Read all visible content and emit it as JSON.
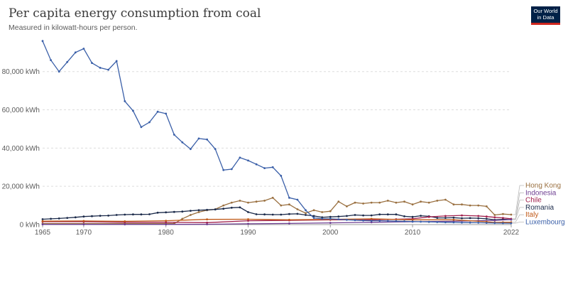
{
  "header": {
    "title": "Per capita energy consumption from coal",
    "subtitle": "Measured in kilowatt-hours per person.",
    "logo_line1": "Our World",
    "logo_line2": "in Data"
  },
  "chart_data": {
    "type": "line",
    "title": "Per capita energy consumption from coal",
    "subtitle": "Measured in kilowatt-hours per person.",
    "xlim": [
      1965,
      2022
    ],
    "ylim": [
      0,
      97000
    ],
    "x_ticks": [
      1965,
      1970,
      1980,
      1990,
      2000,
      2010,
      2022
    ],
    "y_ticks": [
      0,
      20000,
      40000,
      60000,
      80000
    ],
    "y_tick_labels": [
      "0 kWh",
      "20,000 kWh",
      "40,000 kWh",
      "60,000 kWh",
      "80,000 kWh"
    ],
    "grid": "horizontal dashed",
    "legend": "right",
    "series": [
      {
        "name": "Luxembourg",
        "color": "#3a5fa8",
        "points": [
          [
            1965,
            96000
          ],
          [
            1966,
            86000
          ],
          [
            1967,
            80000
          ],
          [
            1968,
            85000
          ],
          [
            1969,
            90000
          ],
          [
            1970,
            92000
          ],
          [
            1971,
            84500
          ],
          [
            1972,
            82000
          ],
          [
            1973,
            81000
          ],
          [
            1974,
            85500
          ],
          [
            1975,
            64500
          ],
          [
            1976,
            59500
          ],
          [
            1977,
            51000
          ],
          [
            1978,
            53500
          ],
          [
            1979,
            59000
          ],
          [
            1980,
            58000
          ],
          [
            1981,
            47000
          ],
          [
            1982,
            43000
          ],
          [
            1983,
            39500
          ],
          [
            1984,
            45000
          ],
          [
            1985,
            44500
          ],
          [
            1986,
            39500
          ],
          [
            1987,
            28500
          ],
          [
            1988,
            29000
          ],
          [
            1989,
            35000
          ],
          [
            1990,
            33500
          ],
          [
            1991,
            31500
          ],
          [
            1992,
            29500
          ],
          [
            1993,
            30000
          ],
          [
            1994,
            25500
          ],
          [
            1995,
            14000
          ],
          [
            1996,
            13000
          ],
          [
            1997,
            7500
          ],
          [
            1998,
            3500
          ],
          [
            1999,
            3000
          ],
          [
            2000,
            3000
          ],
          [
            2001,
            2800
          ],
          [
            2002,
            2500
          ],
          [
            2003,
            2300
          ],
          [
            2004,
            2100
          ],
          [
            2005,
            2000
          ],
          [
            2006,
            2000
          ],
          [
            2007,
            1900
          ],
          [
            2008,
            1800
          ],
          [
            2009,
            1700
          ],
          [
            2010,
            1600
          ],
          [
            2011,
            1500
          ],
          [
            2012,
            1400
          ],
          [
            2013,
            1300
          ],
          [
            2014,
            1200
          ],
          [
            2015,
            1100
          ],
          [
            2016,
            1000
          ],
          [
            2017,
            1000
          ],
          [
            2018,
            950
          ],
          [
            2019,
            900
          ],
          [
            2020,
            800
          ],
          [
            2021,
            750
          ],
          [
            2022,
            700
          ]
        ]
      },
      {
        "name": "Hong Kong",
        "color": "#9a7040",
        "points": [
          [
            1965,
            500
          ],
          [
            1970,
            500
          ],
          [
            1975,
            500
          ],
          [
            1980,
            500
          ],
          [
            1981,
            500
          ],
          [
            1982,
            3000
          ],
          [
            1983,
            5000
          ],
          [
            1984,
            6500
          ],
          [
            1985,
            7500
          ],
          [
            1986,
            8000
          ],
          [
            1987,
            10000
          ],
          [
            1988,
            11500
          ],
          [
            1989,
            12500
          ],
          [
            1990,
            11500
          ],
          [
            1991,
            12000
          ],
          [
            1992,
            12500
          ],
          [
            1993,
            14000
          ],
          [
            1994,
            10000
          ],
          [
            1995,
            10500
          ],
          [
            1996,
            8000
          ],
          [
            1997,
            6000
          ],
          [
            1998,
            7500
          ],
          [
            1999,
            6500
          ],
          [
            2000,
            7000
          ],
          [
            2001,
            12000
          ],
          [
            2002,
            9500
          ],
          [
            2003,
            11500
          ],
          [
            2004,
            11000
          ],
          [
            2005,
            11500
          ],
          [
            2006,
            11500
          ],
          [
            2007,
            12500
          ],
          [
            2008,
            11500
          ],
          [
            2009,
            12000
          ],
          [
            2010,
            10500
          ],
          [
            2011,
            12000
          ],
          [
            2012,
            11500
          ],
          [
            2013,
            12500
          ],
          [
            2014,
            13000
          ],
          [
            2015,
            10500
          ],
          [
            2016,
            10500
          ],
          [
            2017,
            10000
          ],
          [
            2018,
            10000
          ],
          [
            2019,
            9500
          ],
          [
            2020,
            5000
          ],
          [
            2021,
            5500
          ],
          [
            2022,
            5200
          ]
        ]
      },
      {
        "name": "Romania",
        "color": "#1b2a4a",
        "points": [
          [
            1965,
            2800
          ],
          [
            1966,
            3000
          ],
          [
            1967,
            3200
          ],
          [
            1968,
            3500
          ],
          [
            1969,
            3800
          ],
          [
            1970,
            4200
          ],
          [
            1971,
            4400
          ],
          [
            1972,
            4600
          ],
          [
            1973,
            4700
          ],
          [
            1974,
            5000
          ],
          [
            1975,
            5200
          ],
          [
            1976,
            5300
          ],
          [
            1977,
            5300
          ],
          [
            1978,
            5400
          ],
          [
            1979,
            6200
          ],
          [
            1980,
            6400
          ],
          [
            1981,
            6600
          ],
          [
            1982,
            6800
          ],
          [
            1983,
            7200
          ],
          [
            1984,
            7500
          ],
          [
            1985,
            7700
          ],
          [
            1986,
            7900
          ],
          [
            1987,
            8300
          ],
          [
            1988,
            8800
          ],
          [
            1989,
            9000
          ],
          [
            1990,
            6500
          ],
          [
            1991,
            5400
          ],
          [
            1992,
            5300
          ],
          [
            1993,
            5200
          ],
          [
            1994,
            5200
          ],
          [
            1995,
            5500
          ],
          [
            1996,
            5600
          ],
          [
            1997,
            5000
          ],
          [
            1998,
            4500
          ],
          [
            1999,
            3800
          ],
          [
            2000,
            4000
          ],
          [
            2001,
            4200
          ],
          [
            2002,
            4500
          ],
          [
            2003,
            5000
          ],
          [
            2004,
            4800
          ],
          [
            2005,
            4800
          ],
          [
            2006,
            5300
          ],
          [
            2007,
            5300
          ],
          [
            2008,
            5300
          ],
          [
            2009,
            4300
          ],
          [
            2010,
            4000
          ],
          [
            2011,
            4600
          ],
          [
            2012,
            4300
          ],
          [
            2013,
            3500
          ],
          [
            2014,
            3500
          ],
          [
            2015,
            3600
          ],
          [
            2016,
            3300
          ],
          [
            2017,
            3400
          ],
          [
            2018,
            3300
          ],
          [
            2019,
            3000
          ],
          [
            2020,
            2500
          ],
          [
            2021,
            2700
          ],
          [
            2022,
            2600
          ]
        ]
      },
      {
        "name": "Chile",
        "color": "#a01f4c",
        "points": [
          [
            1965,
            1500
          ],
          [
            1970,
            1500
          ],
          [
            1975,
            1200
          ],
          [
            1980,
            1200
          ],
          [
            1985,
            1000
          ],
          [
            1990,
            2000
          ],
          [
            1995,
            2200
          ],
          [
            2000,
            2500
          ],
          [
            2005,
            2500
          ],
          [
            2008,
            2800
          ],
          [
            2010,
            3000
          ],
          [
            2012,
            4000
          ],
          [
            2014,
            4500
          ],
          [
            2016,
            4800
          ],
          [
            2018,
            4500
          ],
          [
            2019,
            4200
          ],
          [
            2020,
            3800
          ],
          [
            2021,
            3500
          ],
          [
            2022,
            3000
          ]
        ]
      },
      {
        "name": "Indonesia",
        "color": "#6d3e91",
        "points": [
          [
            1965,
            100
          ],
          [
            1970,
            100
          ],
          [
            1975,
            100
          ],
          [
            1980,
            100
          ],
          [
            1985,
            150
          ],
          [
            1990,
            400
          ],
          [
            1995,
            600
          ],
          [
            2000,
            900
          ],
          [
            2005,
            1200
          ],
          [
            2010,
            1500
          ],
          [
            2015,
            1700
          ],
          [
            2018,
            2000
          ],
          [
            2020,
            2200
          ],
          [
            2022,
            2600
          ]
        ]
      },
      {
        "name": "Italy",
        "color": "#c05917",
        "points": [
          [
            1965,
            1800
          ],
          [
            1970,
            1900
          ],
          [
            1975,
            1700
          ],
          [
            1980,
            2000
          ],
          [
            1985,
            2700
          ],
          [
            1990,
            2800
          ],
          [
            1995,
            2500
          ],
          [
            2000,
            2700
          ],
          [
            2005,
            3000
          ],
          [
            2010,
            2500
          ],
          [
            2015,
            2500
          ],
          [
            2019,
            1500
          ],
          [
            2020,
            1100
          ],
          [
            2021,
            1200
          ],
          [
            2022,
            1200
          ]
        ]
      }
    ]
  }
}
